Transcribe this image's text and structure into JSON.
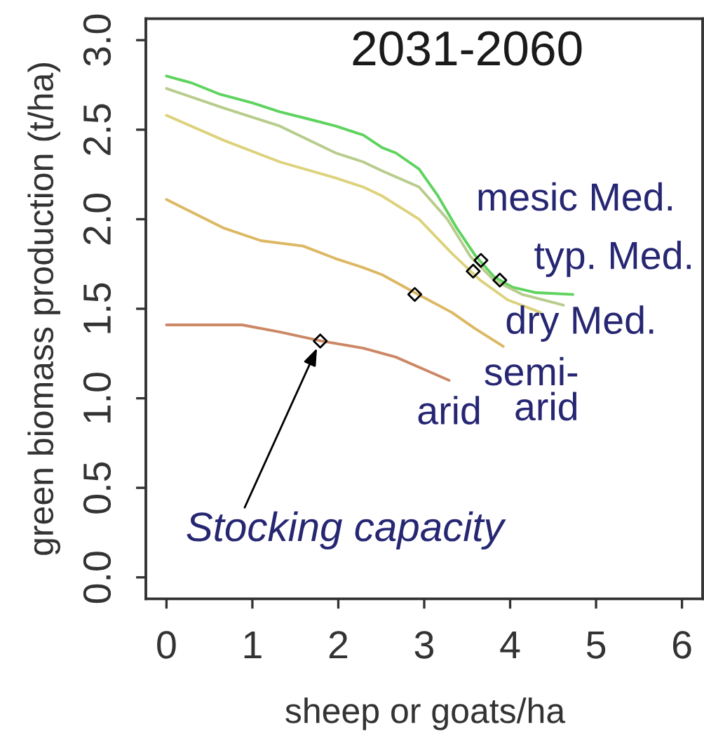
{
  "chart_data": {
    "type": "line",
    "title": "2031-2060",
    "xlabel": "sheep or goats/ha",
    "ylabel": "green biomass production (t/ha)",
    "xlim": [
      -0.24,
      6.24
    ],
    "ylim": [
      -0.12,
      3.12
    ],
    "xticks": [
      0,
      1,
      2,
      3,
      4,
      5,
      6
    ],
    "yticks": [
      {
        "value": 0,
        "label": "0.0"
      },
      {
        "value": 0.5,
        "label": "0.5"
      },
      {
        "value": 1,
        "label": "1.0"
      },
      {
        "value": 1.5,
        "label": "1.5"
      },
      {
        "value": 2,
        "label": "2.0"
      },
      {
        "value": 2.5,
        "label": "2.5"
      },
      {
        "value": 3,
        "label": "3.0"
      }
    ],
    "series": [
      {
        "name": "mesic Med.",
        "color": "#5fd35f",
        "x": [
          0,
          0.3,
          0.61,
          1.0,
          1.32,
          1.65,
          1.97,
          2.29,
          2.51,
          2.67,
          2.94,
          3.16,
          3.38,
          3.59,
          3.81,
          4.03,
          4.3,
          4.73
        ],
        "values": [
          2.8,
          2.76,
          2.7,
          2.65,
          2.6,
          2.56,
          2.52,
          2.47,
          2.4,
          2.37,
          2.28,
          2.13,
          1.95,
          1.8,
          1.68,
          1.62,
          1.59,
          1.58
        ]
      },
      {
        "name": "typ. Med.",
        "color": "#b8cc8c",
        "x": [
          0,
          0.67,
          1.32,
          1.97,
          2.29,
          2.51,
          2.94,
          3.27,
          3.54,
          3.81,
          4.14,
          4.62
        ],
        "values": [
          2.73,
          2.62,
          2.52,
          2.37,
          2.32,
          2.27,
          2.18,
          2.0,
          1.79,
          1.66,
          1.58,
          1.52
        ]
      },
      {
        "name": "dry Med.",
        "color": "#ddd27c",
        "x": [
          0,
          0.67,
          1.32,
          1.97,
          2.29,
          2.51,
          2.94,
          3.32,
          3.65,
          3.97,
          4.35
        ],
        "values": [
          2.58,
          2.44,
          2.32,
          2.23,
          2.18,
          2.13,
          2.0,
          1.81,
          1.66,
          1.55,
          1.48
        ]
      },
      {
        "name": "semi-\narid",
        "color": "#dcb862",
        "x": [
          0,
          0.67,
          1.1,
          1.59,
          1.97,
          2.29,
          2.51,
          2.89,
          3.32,
          3.59,
          3.92
        ],
        "values": [
          2.11,
          1.95,
          1.88,
          1.85,
          1.78,
          1.73,
          1.69,
          1.59,
          1.48,
          1.39,
          1.29
        ]
      },
      {
        "name": "arid",
        "color": "#cc8866",
        "x": [
          0,
          0.88,
          1.32,
          1.8,
          2.29,
          2.67,
          3.29
        ],
        "values": [
          1.41,
          1.41,
          1.37,
          1.32,
          1.28,
          1.23,
          1.1
        ]
      },
      {
        "type": "scatter",
        "marker": "diamond",
        "color": "#000000",
        "x": [
          1.79,
          2.89,
          3.57,
          3.66,
          3.88
        ],
        "values": [
          1.32,
          1.58,
          1.71,
          1.77,
          1.66
        ]
      }
    ],
    "annotations": [
      {
        "text": "Stocking capacity",
        "x": 1.79,
        "y": 1.32
      }
    ]
  }
}
